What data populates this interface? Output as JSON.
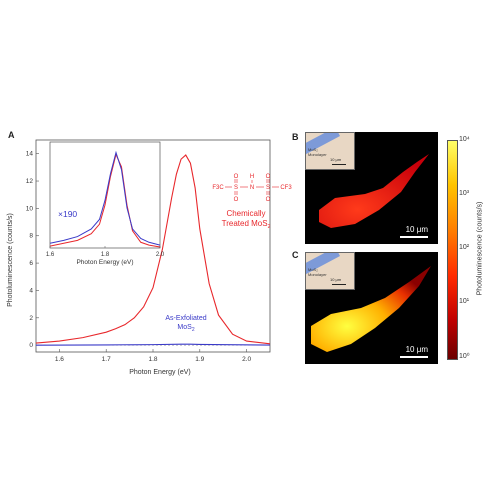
{
  "panels": {
    "a": "A",
    "b": "B",
    "c": "C"
  },
  "chart_data": {
    "type": "line",
    "xlabel": "Photon Energy (eV)",
    "ylabel": "Photoluminescence (counts/s)",
    "xlim": [
      1.55,
      2.05
    ],
    "ylim": [
      -0.5,
      15
    ],
    "x_ticks": [
      "1.6",
      "1.7",
      "1.8",
      "1.9",
      "2.0"
    ],
    "y_ticks": [
      "0",
      "2",
      "4",
      "6",
      "8",
      "10",
      "12",
      "14"
    ],
    "series": [
      {
        "name": "Chemically Treated MoS2",
        "color": "#e8282c",
        "x": [
          1.55,
          1.6,
          1.65,
          1.7,
          1.72,
          1.74,
          1.76,
          1.78,
          1.8,
          1.82,
          1.84,
          1.85,
          1.86,
          1.87,
          1.88,
          1.89,
          1.9,
          1.92,
          1.94,
          1.97,
          2.0,
          2.05
        ],
        "values": [
          0.15,
          0.3,
          0.55,
          0.95,
          1.2,
          1.5,
          2.0,
          2.8,
          4.2,
          7.0,
          10.8,
          12.5,
          13.6,
          13.9,
          13.3,
          11.5,
          8.5,
          4.5,
          2.2,
          0.8,
          0.3,
          0.1
        ]
      },
      {
        "name": "As-Exfoliated MoS2",
        "color": "#3a3ac8",
        "x": [
          1.55,
          1.7,
          1.8,
          1.86,
          1.88,
          1.9,
          2.05
        ],
        "values": [
          0.0,
          0.02,
          0.04,
          0.07,
          0.07,
          0.05,
          0.01
        ]
      }
    ],
    "annotations": {
      "treated_line1": "Chemically",
      "treated_line2": "Treated MoS",
      "treated_sub": "2",
      "exfoliated_line1": "As-Exfoliated",
      "exfoliated_line2": "MoS",
      "exfoliated_sub": "2"
    },
    "molecule": {
      "left_group": "F3C",
      "right_group": "CF3",
      "s": "S",
      "n": "N",
      "h": "H",
      "o": "O"
    },
    "inset": {
      "xlim": [
        1.6,
        2.0
      ],
      "x_ticks": [
        "1.6",
        "1.8",
        "2.0"
      ],
      "xlabel": "Photon Energy (eV)",
      "multiplier": "×190",
      "series": [
        {
          "name": "Chemically Treated MoS2 (normalized)",
          "color": "#e8282c",
          "x": [
            1.6,
            1.65,
            1.7,
            1.75,
            1.78,
            1.8,
            1.82,
            1.84,
            1.86,
            1.88,
            1.9,
            1.93,
            1.96,
            2.0
          ],
          "values": [
            0.02,
            0.05,
            0.08,
            0.15,
            0.25,
            0.45,
            0.75,
            0.98,
            0.85,
            0.45,
            0.18,
            0.06,
            0.03,
            0.01
          ]
        },
        {
          "name": "As-Exfoliated MoS2 (×190)",
          "color": "#3a3ac8",
          "x": [
            1.6,
            1.65,
            1.7,
            1.75,
            1.78,
            1.8,
            1.82,
            1.84,
            1.86,
            1.88,
            1.9,
            1.93,
            1.96,
            2.0
          ],
          "values": [
            0.05,
            0.08,
            0.12,
            0.2,
            0.3,
            0.5,
            0.78,
            1.0,
            0.82,
            0.42,
            0.2,
            0.1,
            0.06,
            0.03
          ]
        }
      ]
    }
  },
  "images": {
    "inset_label": "MoS₂ Monolayer",
    "inset_scale": "10 μm",
    "scale_bar": "10 μm",
    "colorbar": {
      "label": "Photoluminescence (counts/s)",
      "ticks": [
        "10⁴",
        "10³",
        "10²",
        "10¹",
        "10⁰"
      ]
    }
  }
}
